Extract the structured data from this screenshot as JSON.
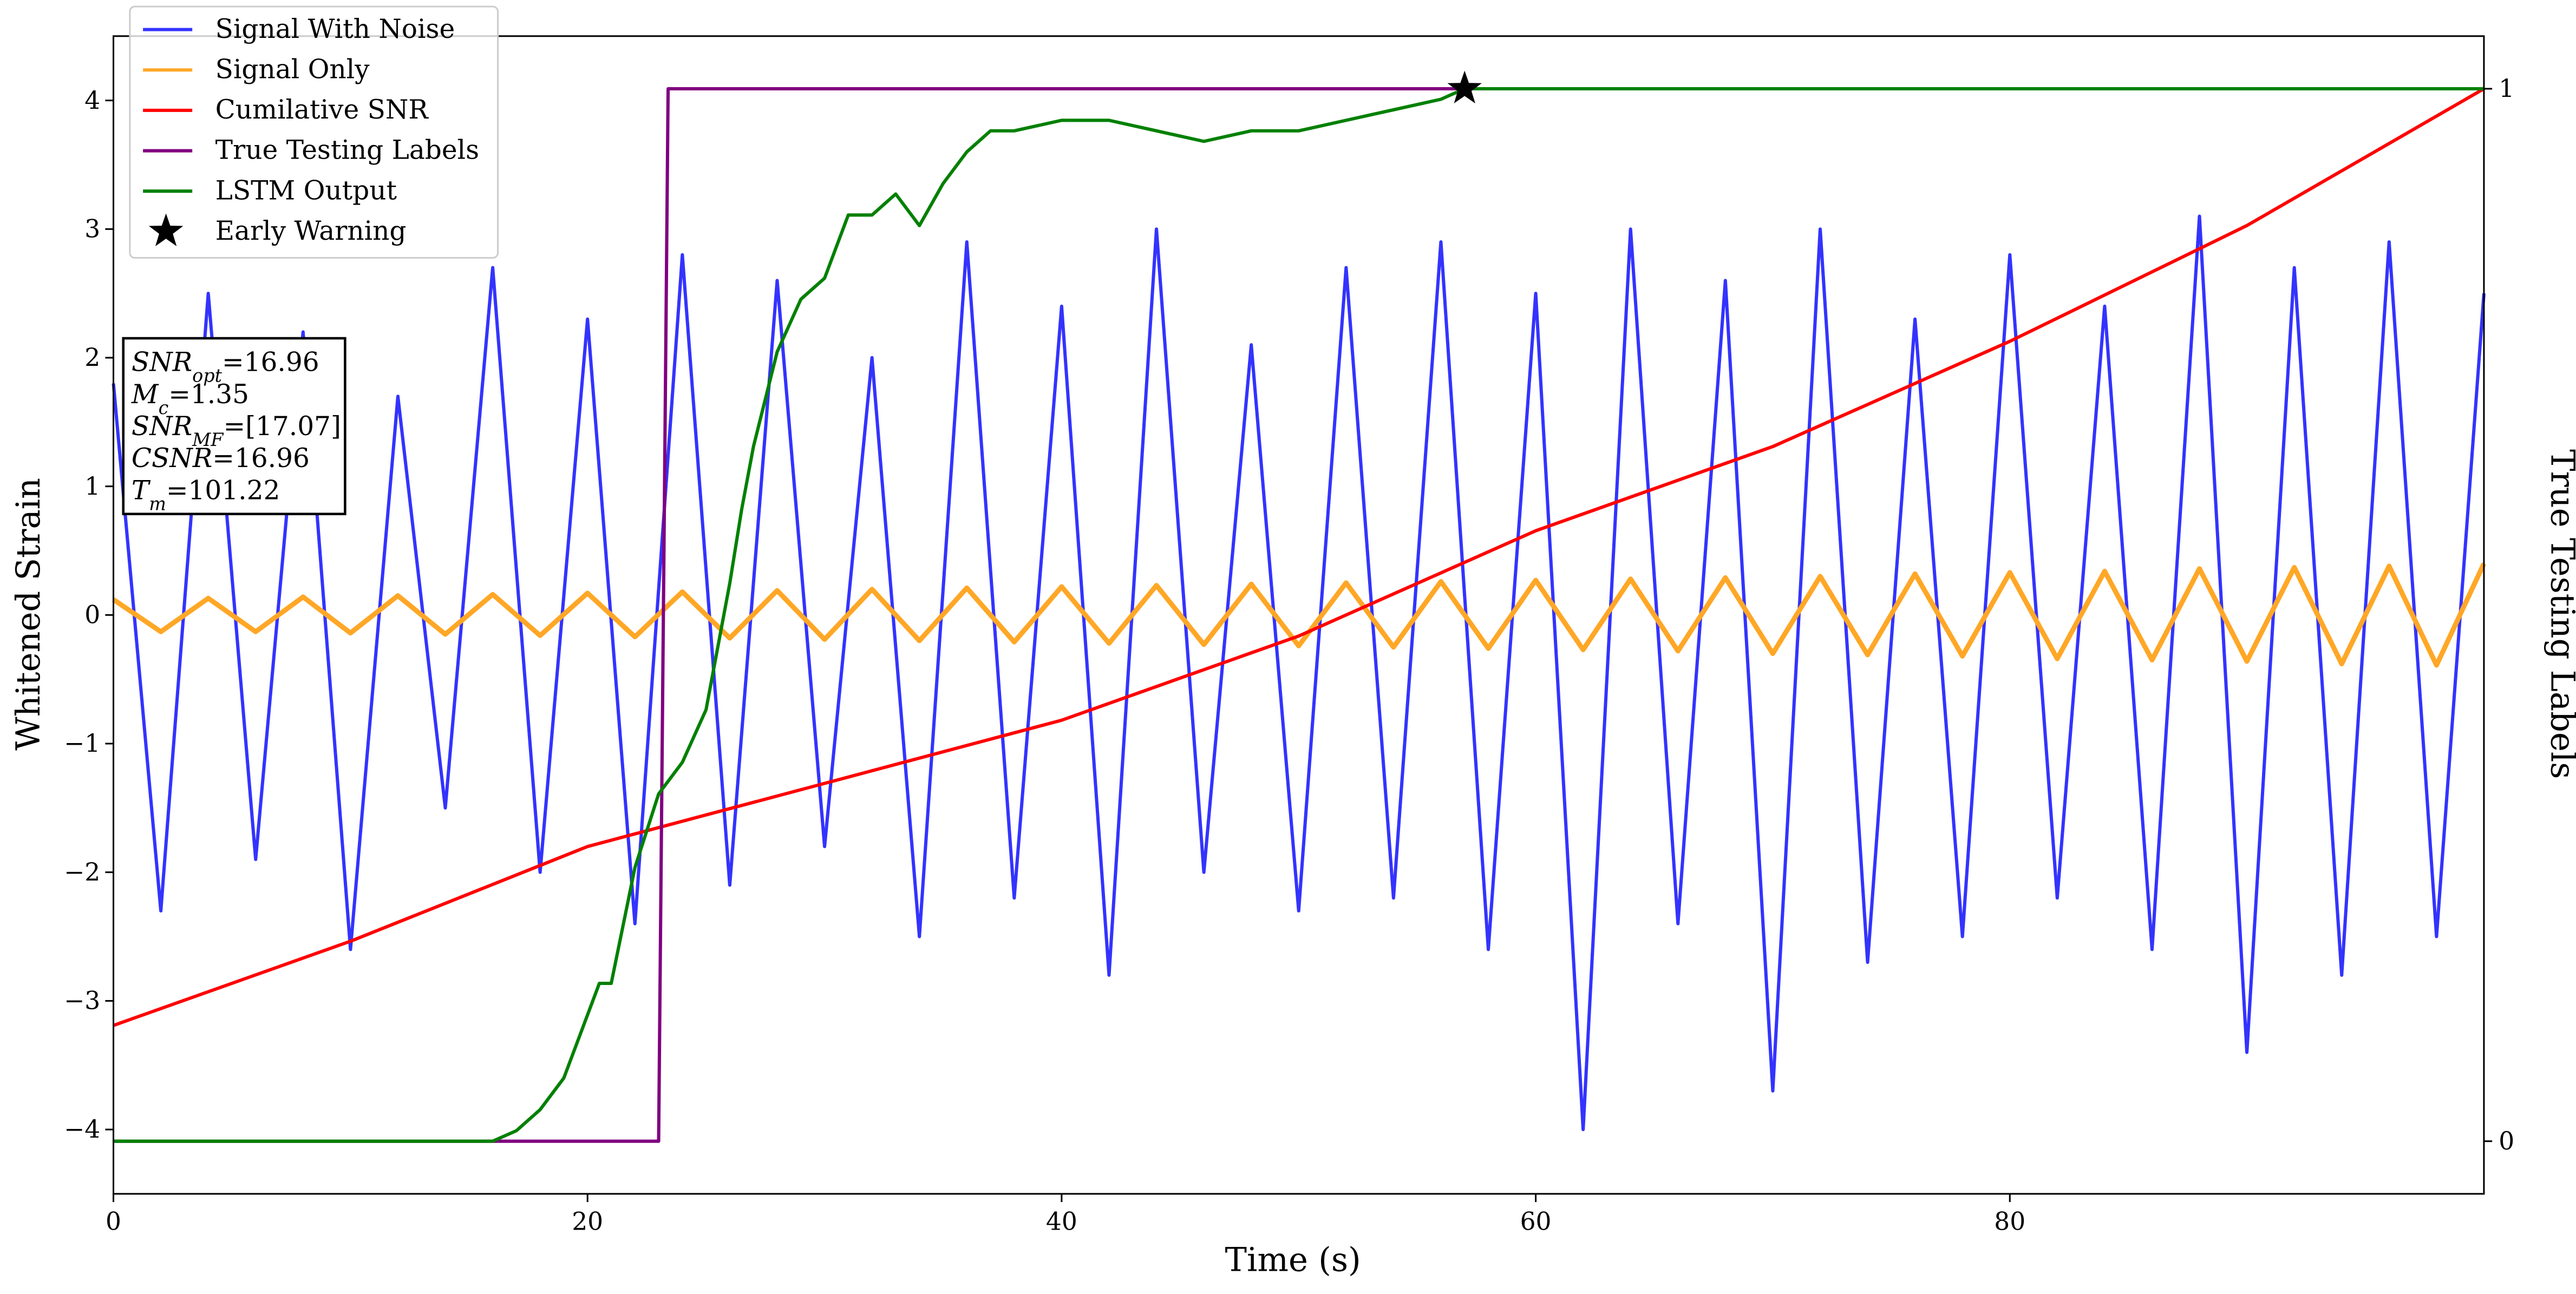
{
  "chart_data": {
    "type": "line",
    "xlabel": "Time (s)",
    "ylabel": "Whitened Strain",
    "y2label": "True Testing Labels",
    "xlim": [
      0,
      100
    ],
    "xticks": [
      0,
      20,
      40,
      60,
      80
    ],
    "ylim": [
      -4.5,
      4.5
    ],
    "yticks": [
      {
        "value": -4,
        "label": "−4"
      },
      {
        "value": -3,
        "label": "−3"
      },
      {
        "value": -2,
        "label": "−2"
      },
      {
        "value": -1,
        "label": "−1"
      },
      0,
      1,
      2,
      3,
      4
    ],
    "y2lim": [
      -0.05,
      1.05
    ],
    "y2ticks": [
      0,
      1
    ],
    "legend": "upper left",
    "series": [
      {
        "name": "Signal With Noise",
        "color": "#3333ff",
        "x": [
          0,
          2,
          4,
          6,
          8,
          10,
          12,
          14,
          16,
          18,
          20,
          22,
          24,
          26,
          28,
          30,
          32,
          34,
          36,
          38,
          40,
          42,
          44,
          46,
          48,
          50,
          52,
          54,
          56,
          58,
          60,
          62,
          64,
          66,
          68,
          70,
          72,
          74,
          76,
          78,
          80,
          82,
          84,
          86,
          88,
          90,
          92,
          94,
          96,
          98,
          100
        ],
        "values": [
          1.8,
          -2.3,
          2.5,
          -1.9,
          2.2,
          -2.6,
          1.7,
          -1.5,
          2.7,
          -2.0,
          2.3,
          -2.4,
          2.8,
          -2.1,
          2.6,
          -1.8,
          2.0,
          -2.5,
          2.9,
          -2.2,
          2.4,
          -2.8,
          3.0,
          -2.0,
          2.1,
          -2.3,
          2.7,
          -2.2,
          2.9,
          -2.6,
          2.5,
          -4.0,
          3.0,
          -2.4,
          2.6,
          -3.7,
          3.0,
          -2.7,
          2.3,
          -2.5,
          2.8,
          -2.2,
          2.4,
          -2.6,
          3.1,
          -3.4,
          2.7,
          -2.8,
          2.9,
          -2.5,
          2.5
        ]
      },
      {
        "name": "Signal Only",
        "color": "#ffa726",
        "x": [
          0,
          2,
          4,
          6,
          8,
          10,
          12,
          14,
          16,
          18,
          20,
          22,
          24,
          26,
          28,
          30,
          32,
          34,
          36,
          38,
          40,
          42,
          44,
          46,
          48,
          50,
          52,
          54,
          56,
          58,
          60,
          62,
          64,
          66,
          68,
          70,
          72,
          74,
          76,
          78,
          80,
          82,
          84,
          86,
          88,
          90,
          92,
          94,
          96,
          98,
          100
        ],
        "values": [
          0.12,
          -0.13,
          0.13,
          -0.13,
          0.14,
          -0.14,
          0.15,
          -0.15,
          0.16,
          -0.16,
          0.17,
          -0.17,
          0.18,
          -0.18,
          0.19,
          -0.19,
          0.2,
          -0.2,
          0.21,
          -0.21,
          0.22,
          -0.22,
          0.23,
          -0.23,
          0.24,
          -0.24,
          0.25,
          -0.25,
          0.26,
          -0.26,
          0.27,
          -0.27,
          0.28,
          -0.28,
          0.29,
          -0.3,
          0.3,
          -0.31,
          0.32,
          -0.32,
          0.33,
          -0.34,
          0.34,
          -0.35,
          0.36,
          -0.36,
          0.37,
          -0.38,
          0.38,
          -0.39,
          0.4
        ]
      },
      {
        "name": "Cumilative SNR",
        "color": "#ff0000",
        "axis": "y2",
        "x": [
          0,
          10,
          20,
          30,
          40,
          50,
          60,
          70,
          80,
          90,
          100
        ],
        "values": [
          0.11,
          0.19,
          0.28,
          0.34,
          0.4,
          0.48,
          0.58,
          0.66,
          0.76,
          0.87,
          1
        ]
      },
      {
        "name": "True Testing Labels",
        "color": "#800080",
        "axis": "y2",
        "x": [
          0,
          23,
          23.4,
          100
        ],
        "values": [
          0,
          0,
          1,
          1
        ]
      },
      {
        "name": "LSTM Output",
        "color": "#008000",
        "axis": "y2",
        "x": [
          0,
          16,
          17,
          18,
          19,
          20,
          20.5,
          21,
          22,
          23,
          24,
          25,
          26,
          26.5,
          27,
          28,
          29,
          30,
          31,
          32,
          33,
          34,
          35,
          36,
          37,
          38,
          40,
          42,
          44,
          46,
          48,
          50,
          52,
          54,
          56,
          57,
          100
        ],
        "values": [
          0,
          0,
          0.01,
          0.03,
          0.06,
          0.12,
          0.15,
          0.15,
          0.26,
          0.33,
          0.36,
          0.41,
          0.53,
          0.6,
          0.66,
          0.75,
          0.8,
          0.82,
          0.88,
          0.88,
          0.9,
          0.87,
          0.91,
          0.94,
          0.96,
          0.96,
          0.97,
          0.97,
          0.96,
          0.95,
          0.96,
          0.96,
          0.97,
          0.98,
          0.99,
          1,
          1
        ]
      },
      {
        "name": "Early Warning",
        "color": "#000000",
        "axis": "y2",
        "marker": "star",
        "x": [
          57
        ],
        "values": [
          1
        ]
      }
    ],
    "annotation": [
      {
        "base": "SNR",
        "sub": "opt",
        "rest": "=16.96"
      },
      {
        "base": "M",
        "sub": "c",
        "rest": "=1.35"
      },
      {
        "base": "SNR",
        "sub": "MF",
        "rest": "=[17.07]"
      },
      {
        "base": "CSNR",
        "rest": "=16.96"
      },
      {
        "base": "T",
        "sub": "m",
        "rest": "=101.22"
      }
    ]
  }
}
